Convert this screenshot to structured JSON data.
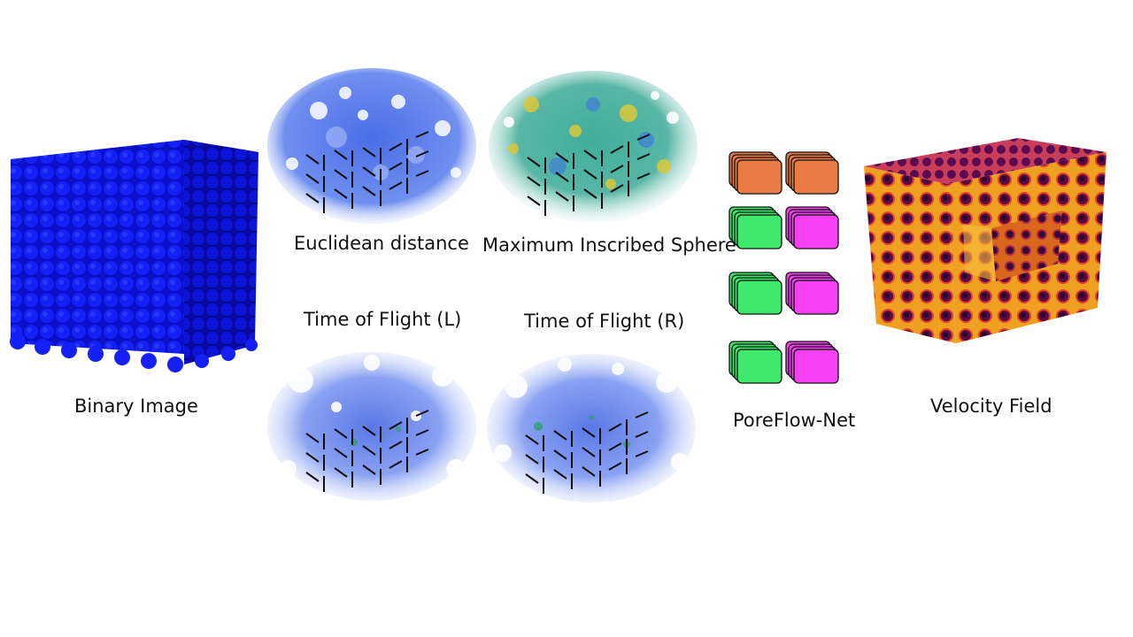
{
  "labels": {
    "binary_image": "Binary Image",
    "euclidean": "Euclidean distance",
    "mis": "Maximum Inscribed Sphere",
    "tof_l": "Time of Flight  (L)",
    "tof_r": "Time of Flight  (R)",
    "network": "PoreFlow-Net",
    "velocity": "Velocity Field"
  },
  "colors": {
    "binary_blue": "#0a10ee",
    "ed_blue": "#5a7de8",
    "mis_green": "#4fb8a0",
    "mis_yellow": "#d8c83a",
    "tof_blue": "#6a86ea",
    "orange_block": "#e97a44",
    "green_block": "#3de86a",
    "magenta_block": "#f440f0",
    "velocity_dark": "#3a0a4a",
    "velocity_hot": "#f7a020"
  },
  "network_blocks": [
    [
      "orange_block",
      "orange_block"
    ],
    [
      "green_block",
      "magenta_block"
    ],
    [
      "green_block",
      "magenta_block"
    ],
    [
      "green_block",
      "magenta_block"
    ]
  ]
}
